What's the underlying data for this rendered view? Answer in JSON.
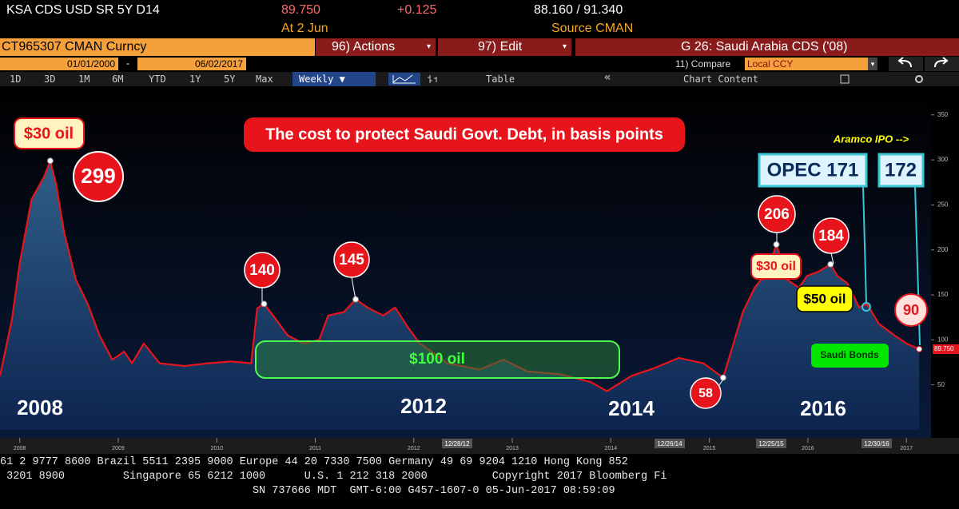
{
  "header": {
    "security": "KSA CDS USD SR 5Y D14",
    "last": "89.750",
    "change": "+0.125",
    "range": "88.160 / 91.340",
    "date": "At 2 Jun",
    "source": "Source CMAN"
  },
  "toolbar": {
    "ticker": "CT965307 CMAN Curncy",
    "actions": "96) Actions",
    "edit": "97) Edit",
    "title": "G 26: Saudi Arabia CDS ('08)",
    "start": "01/01/2000",
    "dash": "-",
    "end": "06/02/2017",
    "compare": "11) Compare",
    "currency": "Local CCY",
    "periods": [
      "1D",
      "3D",
      "1M",
      "6M",
      "YTD",
      "1Y",
      "5Y",
      "Max"
    ],
    "frequency": "Weekly ▼",
    "table": "Table",
    "collapse": "«",
    "chart_content": "Chart Content"
  },
  "chart_data": {
    "type": "line",
    "x": [
      2007.8,
      2007.92,
      2008.0,
      2008.12,
      2008.25,
      2008.31,
      2008.37,
      2008.45,
      2008.57,
      2008.69,
      2008.81,
      2008.94,
      2009.06,
      2009.14,
      2009.26,
      2009.42,
      2009.67,
      2009.91,
      2010.15,
      2010.35,
      2010.41,
      2010.48,
      2010.6,
      2010.72,
      2010.88,
      2011.04,
      2011.13,
      2011.29,
      2011.41,
      2011.53,
      2011.69,
      2011.81,
      2011.94,
      2012.06,
      2012.18,
      2012.34,
      2012.67,
      2012.91,
      2013.15,
      2013.48,
      2013.8,
      2013.96,
      2014.21,
      2014.45,
      2014.69,
      2014.94,
      2015.14,
      2015.22,
      2015.34,
      2015.46,
      2015.59,
      2015.68,
      2015.79,
      2015.91,
      2015.99,
      2016.11,
      2016.23,
      2016.3,
      2016.4,
      2016.52,
      2016.6,
      2016.72,
      2016.88,
      2017.0,
      2017.13
    ],
    "series": [
      {
        "name": "KSA CDS USD SR 5Y D14",
        "color": "#e8141b",
        "values": [
          60,
          122,
          185,
          256,
          282,
          299,
          273,
          220,
          167,
          140,
          105,
          78,
          87,
          74,
          96,
          74,
          71,
          74,
          76,
          74,
          135,
          140,
          123,
          105,
          96,
          100,
          127,
          131,
          145,
          136,
          127,
          136,
          114,
          96,
          87,
          74,
          67,
          78,
          65,
          62,
          53,
          43,
          60,
          69,
          80,
          74,
          58,
          87,
          131,
          158,
          176,
          206,
          167,
          158,
          171,
          176,
          184,
          171,
          163,
          136,
          140,
          118,
          105,
          96,
          89.75
        ],
        "value_labels": [
          null,
          null,
          null,
          null,
          null,
          null,
          null,
          null,
          null,
          null,
          null,
          null,
          null,
          null,
          null,
          null,
          null,
          null,
          null,
          null,
          null,
          null,
          null,
          null,
          null,
          null,
          null,
          null,
          null,
          null,
          null,
          null,
          null,
          null,
          null,
          null,
          null,
          null,
          null,
          null,
          null,
          null,
          null,
          null,
          null,
          null,
          null,
          null,
          null,
          null,
          null,
          null,
          null,
          null,
          null,
          null,
          null,
          null,
          null,
          null,
          null,
          null,
          null,
          null,
          "89.750"
        ]
      }
    ],
    "xlim": [
      2007.8,
      2017.25
    ],
    "xticks": [
      2008,
      2009,
      2010,
      2011,
      2012,
      2013,
      2014,
      2015,
      2016,
      2017
    ],
    "ylim": [
      0,
      380
    ],
    "yticks": [
      50,
      100,
      150,
      200,
      250,
      300,
      350
    ],
    "grid": false,
    "date_markers": [
      "12/28/12",
      "12/26/14",
      "12/25/15",
      "12/30/16"
    ],
    "annotations": {
      "title": "The cost to protect Saudi Govt. Debt, in basis points",
      "oil_2008": "$30 oil",
      "peak_2008": "299",
      "peak_2010": "140",
      "peak_2011": "145",
      "oil_100": "$100 oil",
      "low_2015": "58",
      "peak_2016a": "206",
      "oil_2016a": "$30 oil",
      "peak_2016b": "184",
      "oil_50": "$50 oil",
      "opec": "OPEC 171",
      "ipo_value": "172",
      "aramco": "Aramco IPO -->",
      "latest": "90",
      "bonds": "Saudi Bonds",
      "year_2008": "2008",
      "year_2012": "2012",
      "year_2014": "2014",
      "year_2016": "2016"
    }
  },
  "footer": {
    "lines": [
      "61 2 9777 8600 Brazil 5511 2395 9000 Europe 44 20 7330 7500 Germany 49 69 9204 1210 Hong Kong 852",
      " 3201 8900         Singapore 65 6212 1000      U.S. 1 212 318 2000          Copyright 2017 Bloomberg Fi",
      "                                       SN 737666 MDT  GMT-6:00 G457-1607-0 05-Jun-2017 08:59:09"
    ]
  }
}
